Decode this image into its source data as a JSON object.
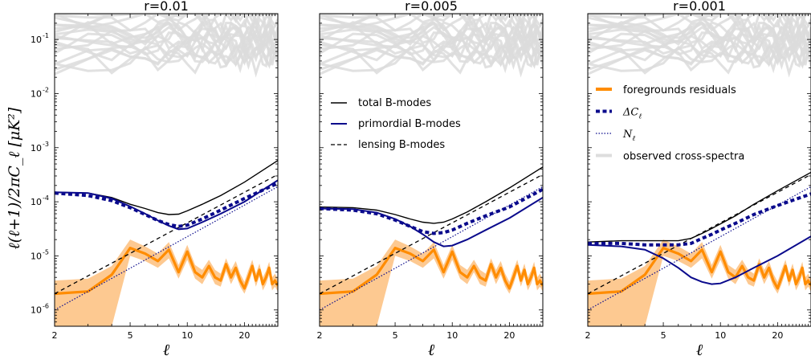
{
  "chart_data": {
    "type": "line",
    "ylabel": "ℓ(ℓ+1)/2πC_ℓ [μK²]",
    "xlabel": "ℓ",
    "x_scale": "log",
    "y_scale": "log",
    "xlim": [
      2,
      30
    ],
    "ylim": [
      5e-07,
      0.3
    ],
    "x_ticks": [
      2,
      5,
      10,
      20
    ],
    "x_tick_labels": [
      "2",
      "5",
      "10",
      "20"
    ],
    "y_ticks": [
      1e-06,
      1e-05,
      0.0001,
      0.001,
      0.01,
      0.1
    ],
    "y_tick_labels": [
      "10",
      "10",
      "10",
      "10",
      "10",
      "10"
    ],
    "y_tick_exponents": [
      "-6",
      "-5",
      "-4",
      "-3",
      "-2",
      "-1"
    ],
    "legend_a": {
      "placement": "middle panel, upper-left",
      "items": [
        {
          "label": "total B-modes",
          "color": "#000000",
          "style": "solid"
        },
        {
          "label": "primordial B-modes",
          "color": "#0a0a8c",
          "style": "solid"
        },
        {
          "label": "lensing B-modes",
          "color": "#000000",
          "style": "dashed"
        }
      ]
    },
    "legend_b": {
      "placement": "right panel, upper-left",
      "items": [
        {
          "label": "foregrounds residuals",
          "color": "#ff8c00",
          "style": "thick"
        },
        {
          "label": "ΔC",
          "sub": "ℓ",
          "color": "#0a0a8c",
          "style": "thickdash"
        },
        {
          "label": "N",
          "sub": "ℓ",
          "color": "#0a0a8c",
          "style": "dotted"
        },
        {
          "label": "observed cross-spectra",
          "color": "#dddddd",
          "style": "thickgray"
        }
      ]
    },
    "colors": {
      "fg": "#ff8c00",
      "fg_band": "#fdc991",
      "blue": "#0a0a8c",
      "gray": "#dcdcdc"
    },
    "shared": {
      "fg_x": [
        2,
        3,
        4,
        5,
        6,
        7,
        8,
        9,
        10,
        11,
        12,
        13,
        14,
        15,
        16,
        17,
        18,
        19,
        20,
        21,
        22,
        23,
        24,
        25,
        26,
        27,
        28,
        29,
        30
      ],
      "fg_y": [
        2e-06,
        2.2e-06,
        4.5e-06,
        1.4e-05,
        1.1e-05,
        8e-06,
        1.3e-05,
        5e-06,
        1.2e-05,
        5e-06,
        4e-06,
        6.5e-06,
        4e-06,
        3.5e-06,
        7e-06,
        4e-06,
        6e-06,
        3.5e-06,
        2.5e-06,
        4e-06,
        6.5e-06,
        3.5e-06,
        5.5e-06,
        3e-06,
        4e-06,
        6e-06,
        3e-06,
        3.5e-06,
        2.8e-06
      ],
      "fg_lo": [
        5e-07,
        5e-07,
        5e-07,
        1e-05,
        8e-06,
        6e-06,
        9e-06,
        3.8e-06,
        8.5e-06,
        3.8e-06,
        3e-06,
        5e-06,
        3e-06,
        2.7e-06,
        5.2e-06,
        3e-06,
        4.5e-06,
        2.7e-06,
        2e-06,
        3e-06,
        5e-06,
        2.7e-06,
        4.2e-06,
        2.3e-06,
        3e-06,
        4.5e-06,
        2.3e-06,
        2.7e-06,
        2.2e-06
      ],
      "fg_hi": [
        3.5e-06,
        3.8e-06,
        6.5e-06,
        2e-05,
        1.5e-05,
        1.1e-05,
        1.8e-05,
        6.8e-06,
        1.6e-05,
        6.8e-06,
        5.5e-06,
        8.5e-06,
        5.5e-06,
        4.7e-06,
        9e-06,
        5.5e-06,
        8e-06,
        4.7e-06,
        3.3e-06,
        5.5e-06,
        8.5e-06,
        4.7e-06,
        7.2e-06,
        4e-06,
        5.3e-06,
        7.8e-06,
        4e-06,
        4.7e-06,
        3.7e-06
      ],
      "lensing_x": [
        2,
        30
      ],
      "lensing_y": [
        2e-06,
        0.00032
      ],
      "noise_x": [
        2,
        30
      ],
      "noise_y": [
        1e-06,
        0.00019
      ],
      "gray_x": [
        2,
        3,
        4,
        5,
        6,
        7,
        8,
        9,
        10,
        11,
        12,
        13,
        14,
        15,
        16,
        17,
        18,
        19,
        20,
        21,
        22,
        23,
        24,
        25,
        26,
        27,
        28,
        29,
        30
      ]
    },
    "panels": [
      {
        "title": "r=0.01",
        "x": [
          2,
          3,
          4,
          5,
          6,
          7,
          8,
          9,
          10,
          12,
          15,
          20,
          30
        ],
        "total": [
          0.00015,
          0.000145,
          0.00012,
          9e-05,
          7.5e-05,
          6.3e-05,
          5.8e-05,
          5.9e-05,
          6.8e-05,
          9e-05,
          0.00013,
          0.00023,
          0.00058
        ],
        "primordial": [
          0.00015,
          0.000145,
          0.000115,
          8.2e-05,
          6e-05,
          4.5e-05,
          3.6e-05,
          3.1e-05,
          3.2e-05,
          4.2e-05,
          6e-05,
          0.0001,
          0.00025
        ],
        "delta_cl": [
          0.000145,
          0.00013,
          0.000105,
          7.8e-05,
          5.8e-05,
          4.5e-05,
          3.8e-05,
          3.5e-05,
          3.7e-05,
          4.8e-05,
          7e-05,
          0.000115,
          0.00022
        ]
      },
      {
        "title": "r=0.005",
        "x": [
          2,
          3,
          4,
          5,
          6,
          7,
          8,
          9,
          10,
          12,
          15,
          20,
          30
        ],
        "total": [
          8e-05,
          7.8e-05,
          7e-05,
          5.8e-05,
          4.8e-05,
          4.2e-05,
          4e-05,
          4.2e-05,
          4.8e-05,
          6.5e-05,
          0.0001,
          0.00018,
          0.00044
        ],
        "primordial": [
          7.5e-05,
          7.3e-05,
          6.3e-05,
          4.8e-05,
          3.5e-05,
          2.5e-05,
          1.8e-05,
          1.5e-05,
          1.55e-05,
          2e-05,
          3e-05,
          5e-05,
          0.00012
        ],
        "delta_cl": [
          7.5e-05,
          7e-05,
          6e-05,
          4.6e-05,
          3.5e-05,
          2.8e-05,
          2.6e-05,
          2.7e-05,
          3e-05,
          4e-05,
          5.5e-05,
          8e-05,
          0.00017
        ]
      },
      {
        "title": "r=0.001",
        "x": [
          2,
          3,
          4,
          5,
          6,
          7,
          8,
          9,
          10,
          12,
          15,
          20,
          30
        ],
        "total": [
          1.8e-05,
          1.9e-05,
          1.9e-05,
          1.9e-05,
          1.9e-05,
          2.1e-05,
          2.6e-05,
          3.2e-05,
          3.9e-05,
          5.5e-05,
          9e-05,
          0.00016,
          0.00035
        ],
        "primordial": [
          1.6e-05,
          1.5e-05,
          1.3e-05,
          9e-06,
          6e-06,
          4e-06,
          3.3e-06,
          3e-06,
          3.1e-06,
          4e-06,
          6e-06,
          1e-05,
          2.3e-05
        ],
        "delta_cl": [
          1.7e-05,
          1.7e-05,
          1.6e-05,
          1.6e-05,
          1.6e-05,
          1.7e-05,
          2.1e-05,
          2.5e-05,
          3e-05,
          4e-05,
          5.8e-05,
          8.5e-05,
          0.00014
        ]
      }
    ]
  }
}
